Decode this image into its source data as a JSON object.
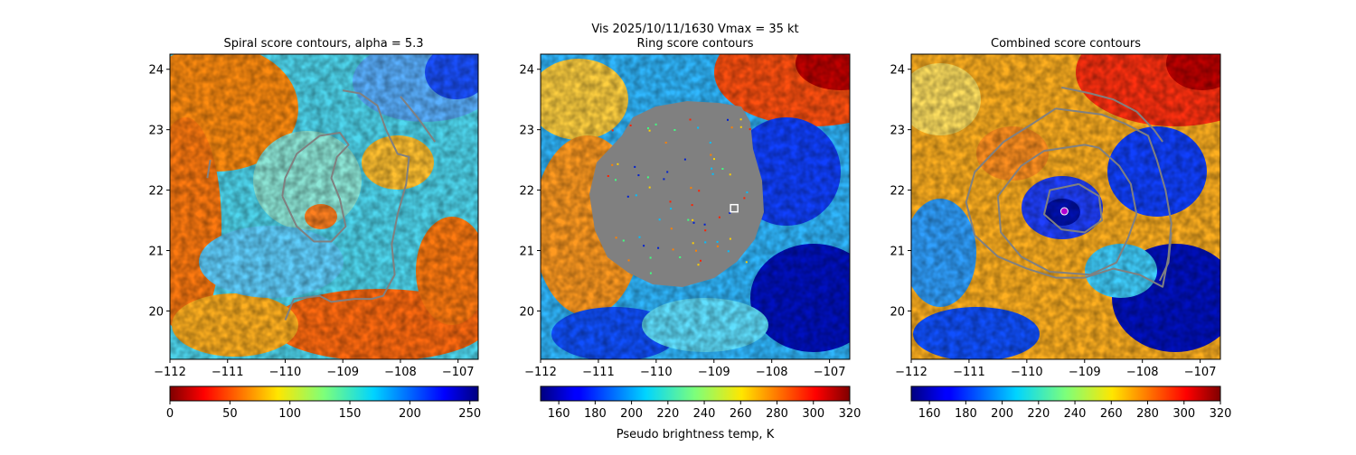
{
  "suptitle": "Vis  2025/10/11/1630    Vmax = 35 kt",
  "colorbar_label": "Pseudo brightness temp, K",
  "chart_data": [
    {
      "type": "heatmap",
      "title": "Spiral score contours, alpha =  5.3",
      "x_ticks": [
        "−112",
        "−111",
        "−110",
        "−109",
        "−108",
        "−107"
      ],
      "x_tick_values": [
        -112,
        -111,
        -110,
        -109,
        -108,
        -107
      ],
      "y_ticks": [
        "20",
        "21",
        "22",
        "23",
        "24"
      ],
      "y_tick_values": [
        20,
        21,
        22,
        23,
        24
      ],
      "xlim": [
        -112.0,
        -106.65
      ],
      "ylim": [
        19.2,
        24.25
      ],
      "colorbar": {
        "ticks": [
          "0",
          "50",
          "100",
          "150",
          "200",
          "250"
        ],
        "tick_values": [
          0,
          50,
          100,
          150,
          200,
          250
        ],
        "range": [
          0,
          257
        ],
        "cmap": "jet_r"
      },
      "contours": [
        {
          "color": "#808080",
          "points": [
            [
              -110.05,
              21.9
            ],
            [
              -110.0,
              22.2
            ],
            [
              -109.8,
              22.6
            ],
            [
              -109.4,
              22.9
            ],
            [
              -109.05,
              22.95
            ],
            [
              -108.9,
              22.75
            ],
            [
              -109.1,
              22.55
            ],
            [
              -109.2,
              22.2
            ],
            [
              -109.05,
              21.85
            ],
            [
              -108.95,
              21.4
            ],
            [
              -109.2,
              21.15
            ],
            [
              -109.5,
              21.15
            ],
            [
              -109.8,
              21.4
            ],
            [
              -110.05,
              21.9
            ]
          ]
        },
        {
          "color": "#808080",
          "points": [
            [
              -109.0,
              23.65
            ],
            [
              -108.7,
              23.6
            ],
            [
              -108.4,
              23.4
            ],
            [
              -108.25,
              23.0
            ],
            [
              -108.05,
              22.6
            ],
            [
              -107.85,
              22.55
            ],
            [
              -107.9,
              22.1
            ],
            [
              -108.05,
              21.6
            ],
            [
              -108.15,
              21.1
            ],
            [
              -108.1,
              20.6
            ],
            [
              -108.3,
              20.25
            ],
            [
              -108.5,
              20.2
            ],
            [
              -108.8,
              20.2
            ],
            [
              -109.2,
              20.15
            ],
            [
              -109.4,
              20.25
            ],
            [
              -109.85,
              20.2
            ],
            [
              -110.0,
              19.85
            ]
          ]
        },
        {
          "color": "#808080",
          "points": [
            [
              -108.0,
              23.55
            ],
            [
              -107.7,
              23.2
            ],
            [
              -107.4,
              22.8
            ]
          ]
        },
        {
          "color": "#808080",
          "points": [
            [
              -111.3,
              22.5
            ],
            [
              -111.35,
              22.2
            ]
          ]
        }
      ]
    },
    {
      "type": "heatmap",
      "title": "Ring score contours",
      "x_ticks": [
        "−112",
        "−111",
        "−110",
        "−109",
        "−108",
        "−107"
      ],
      "x_tick_values": [
        -112,
        -111,
        -110,
        -109,
        -108,
        -107
      ],
      "y_ticks": [
        "20",
        "21",
        "22",
        "23",
        "24"
      ],
      "y_tick_values": [
        20,
        21,
        22,
        23,
        24
      ],
      "xlim": [
        -112.0,
        -106.65
      ],
      "ylim": [
        19.2,
        24.25
      ],
      "colorbar": {
        "ticks": [
          "160",
          "180",
          "200",
          "220",
          "240",
          "260",
          "280",
          "300",
          "320"
        ],
        "tick_values": [
          160,
          180,
          200,
          220,
          240,
          260,
          280,
          300,
          320
        ],
        "range": [
          150,
          320
        ],
        "cmap": "jet"
      },
      "marker": {
        "x": -108.65,
        "y": 21.7,
        "shape": "square"
      },
      "masked_region_color": "#808080"
    },
    {
      "type": "heatmap",
      "title": "Combined score contours",
      "x_ticks": [
        "−112",
        "−111",
        "−110",
        "−109",
        "−108",
        "−107"
      ],
      "x_tick_values": [
        -112,
        -111,
        -110,
        -109,
        -108,
        -107
      ],
      "y_ticks": [
        "20",
        "21",
        "22",
        "23",
        "24"
      ],
      "y_tick_values": [
        20,
        21,
        22,
        23,
        24
      ],
      "xlim": [
        -112.0,
        -106.65
      ],
      "ylim": [
        19.2,
        24.25
      ],
      "colorbar": {
        "ticks": [
          "160",
          "180",
          "200",
          "220",
          "240",
          "260",
          "280",
          "300",
          "320"
        ],
        "tick_values": [
          160,
          180,
          200,
          220,
          240,
          260,
          280,
          300,
          320
        ],
        "range": [
          150,
          320
        ],
        "cmap": "jet"
      },
      "marker": {
        "x": -109.35,
        "y": 21.65,
        "shape": "circle",
        "color": "#b000d0"
      },
      "contours": [
        {
          "color": "#808080",
          "points": [
            [
              -109.1,
              22.1
            ],
            [
              -109.6,
              22.0
            ],
            [
              -109.7,
              21.6
            ],
            [
              -109.4,
              21.35
            ],
            [
              -109.0,
              21.3
            ],
            [
              -108.7,
              21.5
            ],
            [
              -108.75,
              21.9
            ],
            [
              -109.1,
              22.1
            ]
          ]
        },
        {
          "color": "#808080",
          "points": [
            [
              -109.0,
              22.75
            ],
            [
              -109.7,
              22.65
            ],
            [
              -110.1,
              22.4
            ],
            [
              -110.5,
              21.9
            ],
            [
              -110.45,
              21.3
            ],
            [
              -110.1,
              20.9
            ],
            [
              -109.6,
              20.65
            ],
            [
              -108.9,
              20.6
            ],
            [
              -108.45,
              20.8
            ],
            [
              -108.25,
              21.2
            ],
            [
              -108.1,
              21.6
            ],
            [
              -108.2,
              22.1
            ],
            [
              -108.4,
              22.4
            ],
            [
              -108.75,
              22.7
            ],
            [
              -109.0,
              22.75
            ]
          ]
        },
        {
          "color": "#808080",
          "points": [
            [
              -109.5,
              23.35
            ],
            [
              -109.9,
              23.1
            ],
            [
              -110.4,
              22.8
            ],
            [
              -110.9,
              22.3
            ],
            [
              -111.05,
              21.8
            ],
            [
              -110.9,
              21.25
            ],
            [
              -110.5,
              20.9
            ],
            [
              -110.0,
              20.7
            ],
            [
              -109.5,
              20.55
            ],
            [
              -109.0,
              20.55
            ],
            [
              -108.5,
              20.7
            ],
            [
              -108.05,
              20.6
            ],
            [
              -107.65,
              20.4
            ],
            [
              -107.55,
              20.9
            ],
            [
              -107.5,
              21.45
            ],
            [
              -107.6,
              22.0
            ],
            [
              -107.75,
              22.5
            ],
            [
              -107.9,
              22.9
            ],
            [
              -108.3,
              23.1
            ],
            [
              -108.7,
              23.25
            ],
            [
              -109.5,
              23.35
            ]
          ]
        },
        {
          "color": "#808080",
          "points": [
            [
              -109.4,
              23.7
            ],
            [
              -108.9,
              23.6
            ],
            [
              -108.5,
              23.5
            ],
            [
              -108.1,
              23.3
            ],
            [
              -107.8,
              23.0
            ],
            [
              -107.65,
              22.8
            ]
          ]
        },
        {
          "color": "#808080",
          "points": [
            [
              -107.7,
              20.5
            ],
            [
              -107.55,
              20.8
            ],
            [
              -107.5,
              21.3
            ]
          ]
        }
      ]
    }
  ]
}
